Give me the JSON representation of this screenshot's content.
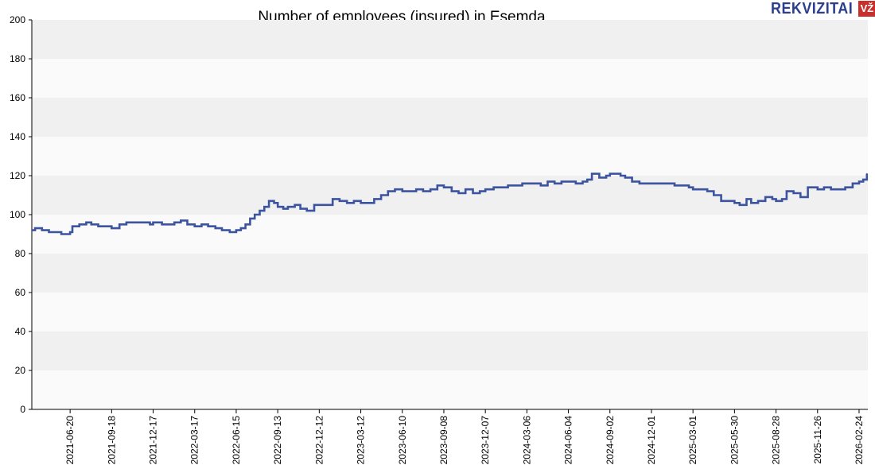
{
  "title": "Number of employees (insured) in Esemda",
  "logo": {
    "text": "REKVIZITAI",
    "badge": "VŽ"
  },
  "colors": {
    "line": "#3c53a0",
    "band_dark": "#f0f0f0",
    "band_light": "#fafafa",
    "logo_text": "#2b3f8c",
    "logo_badge": "#c9302c"
  },
  "chart_data": {
    "type": "line",
    "title": "Number of employees (insured) in Esemda",
    "xlabel": "",
    "ylabel": "",
    "ylim": [
      0,
      200
    ],
    "yticks": [
      0,
      20,
      40,
      60,
      80,
      100,
      120,
      140,
      160,
      180,
      200
    ],
    "xlim": [
      "2021-03-29",
      "2026-03-15"
    ],
    "xticks": [
      "2021-06-20",
      "2021-09-18",
      "2021-12-17",
      "2022-03-17",
      "2022-06-15",
      "2022-09-13",
      "2022-12-12",
      "2023-03-12",
      "2023-06-10",
      "2023-09-08",
      "2023-12-07",
      "2024-03-06",
      "2024-06-04",
      "2024-09-02",
      "2024-12-01",
      "2025-03-01",
      "2025-05-30",
      "2025-08-28",
      "2025-11-26",
      "2026-02-24"
    ],
    "grid": "horizontal alternating bands",
    "legend": "none",
    "series": [
      {
        "x": [
          "2021-03-29",
          "2021-04-05",
          "2021-04-20",
          "2021-05-05",
          "2021-05-20",
          "2021-06-01",
          "2021-06-20",
          "2021-06-25",
          "2021-07-10",
          "2021-07-25",
          "2021-08-05",
          "2021-08-20",
          "2021-09-01",
          "2021-09-18",
          "2021-10-05",
          "2021-10-20",
          "2021-11-05",
          "2021-11-25",
          "2021-12-10",
          "2021-12-17",
          "2022-01-05",
          "2022-01-15",
          "2022-02-01",
          "2022-02-15",
          "2022-03-01",
          "2022-03-17",
          "2022-04-01",
          "2022-04-15",
          "2022-05-01",
          "2022-05-15",
          "2022-06-01",
          "2022-06-15",
          "2022-06-25",
          "2022-07-05",
          "2022-07-15",
          "2022-07-25",
          "2022-08-05",
          "2022-08-15",
          "2022-08-25",
          "2022-09-05",
          "2022-09-13",
          "2022-09-25",
          "2022-10-05",
          "2022-10-20",
          "2022-11-01",
          "2022-11-15",
          "2022-12-01",
          "2022-12-12",
          "2022-12-25",
          "2023-01-10",
          "2023-01-25",
          "2023-02-10",
          "2023-02-25",
          "2023-03-12",
          "2023-03-25",
          "2023-04-10",
          "2023-04-25",
          "2023-05-10",
          "2023-05-25",
          "2023-06-10",
          "2023-06-25",
          "2023-07-10",
          "2023-07-25",
          "2023-08-10",
          "2023-08-25",
          "2023-09-08",
          "2023-09-25",
          "2023-10-10",
          "2023-10-25",
          "2023-11-10",
          "2023-11-25",
          "2023-12-07",
          "2023-12-25",
          "2024-01-10",
          "2024-01-25",
          "2024-02-10",
          "2024-02-25",
          "2024-03-06",
          "2024-03-20",
          "2024-04-05",
          "2024-04-20",
          "2024-05-05",
          "2024-05-20",
          "2024-06-04",
          "2024-06-20",
          "2024-07-05",
          "2024-07-15",
          "2024-07-25",
          "2024-08-10",
          "2024-08-25",
          "2024-09-02",
          "2024-09-15",
          "2024-09-25",
          "2024-10-05",
          "2024-10-20",
          "2024-11-05",
          "2024-11-20",
          "2024-12-01",
          "2024-12-20",
          "2025-01-05",
          "2025-01-20",
          "2025-02-05",
          "2025-02-20",
          "2025-03-01",
          "2025-03-15",
          "2025-04-01",
          "2025-04-15",
          "2025-05-01",
          "2025-05-15",
          "2025-05-30",
          "2025-06-10",
          "2025-06-25",
          "2025-07-05",
          "2025-07-20",
          "2025-08-05",
          "2025-08-20",
          "2025-08-28",
          "2025-09-10",
          "2025-09-20",
          "2025-10-05",
          "2025-10-20",
          "2025-11-05",
          "2025-11-15",
          "2025-11-26",
          "2025-12-10",
          "2025-12-25",
          "2026-01-10",
          "2026-01-25",
          "2026-02-10",
          "2026-02-24",
          "2026-03-05",
          "2026-03-13"
        ],
        "y": [
          92,
          93,
          92,
          91,
          91,
          90,
          91,
          94,
          95,
          96,
          95,
          94,
          94,
          93,
          95,
          96,
          96,
          96,
          95,
          96,
          95,
          95,
          96,
          97,
          95,
          94,
          95,
          94,
          93,
          92,
          91,
          92,
          93,
          95,
          98,
          100,
          102,
          104,
          107,
          106,
          104,
          103,
          104,
          105,
          103,
          102,
          105,
          105,
          105,
          108,
          107,
          106,
          107,
          106,
          106,
          108,
          110,
          112,
          113,
          112,
          112,
          113,
          112,
          113,
          115,
          114,
          112,
          111,
          113,
          111,
          112,
          113,
          114,
          114,
          115,
          115,
          116,
          116,
          116,
          115,
          117,
          116,
          117,
          117,
          116,
          117,
          118,
          121,
          119,
          120,
          121,
          121,
          120,
          119,
          117,
          116,
          116,
          116,
          116,
          116,
          115,
          115,
          114,
          113,
          113,
          112,
          110,
          107,
          107,
          106,
          105,
          108,
          106,
          107,
          109,
          108,
          107,
          108,
          112,
          111,
          109,
          114,
          114,
          113,
          114,
          113,
          113,
          114,
          116,
          117,
          118,
          121
        ]
      }
    ]
  }
}
